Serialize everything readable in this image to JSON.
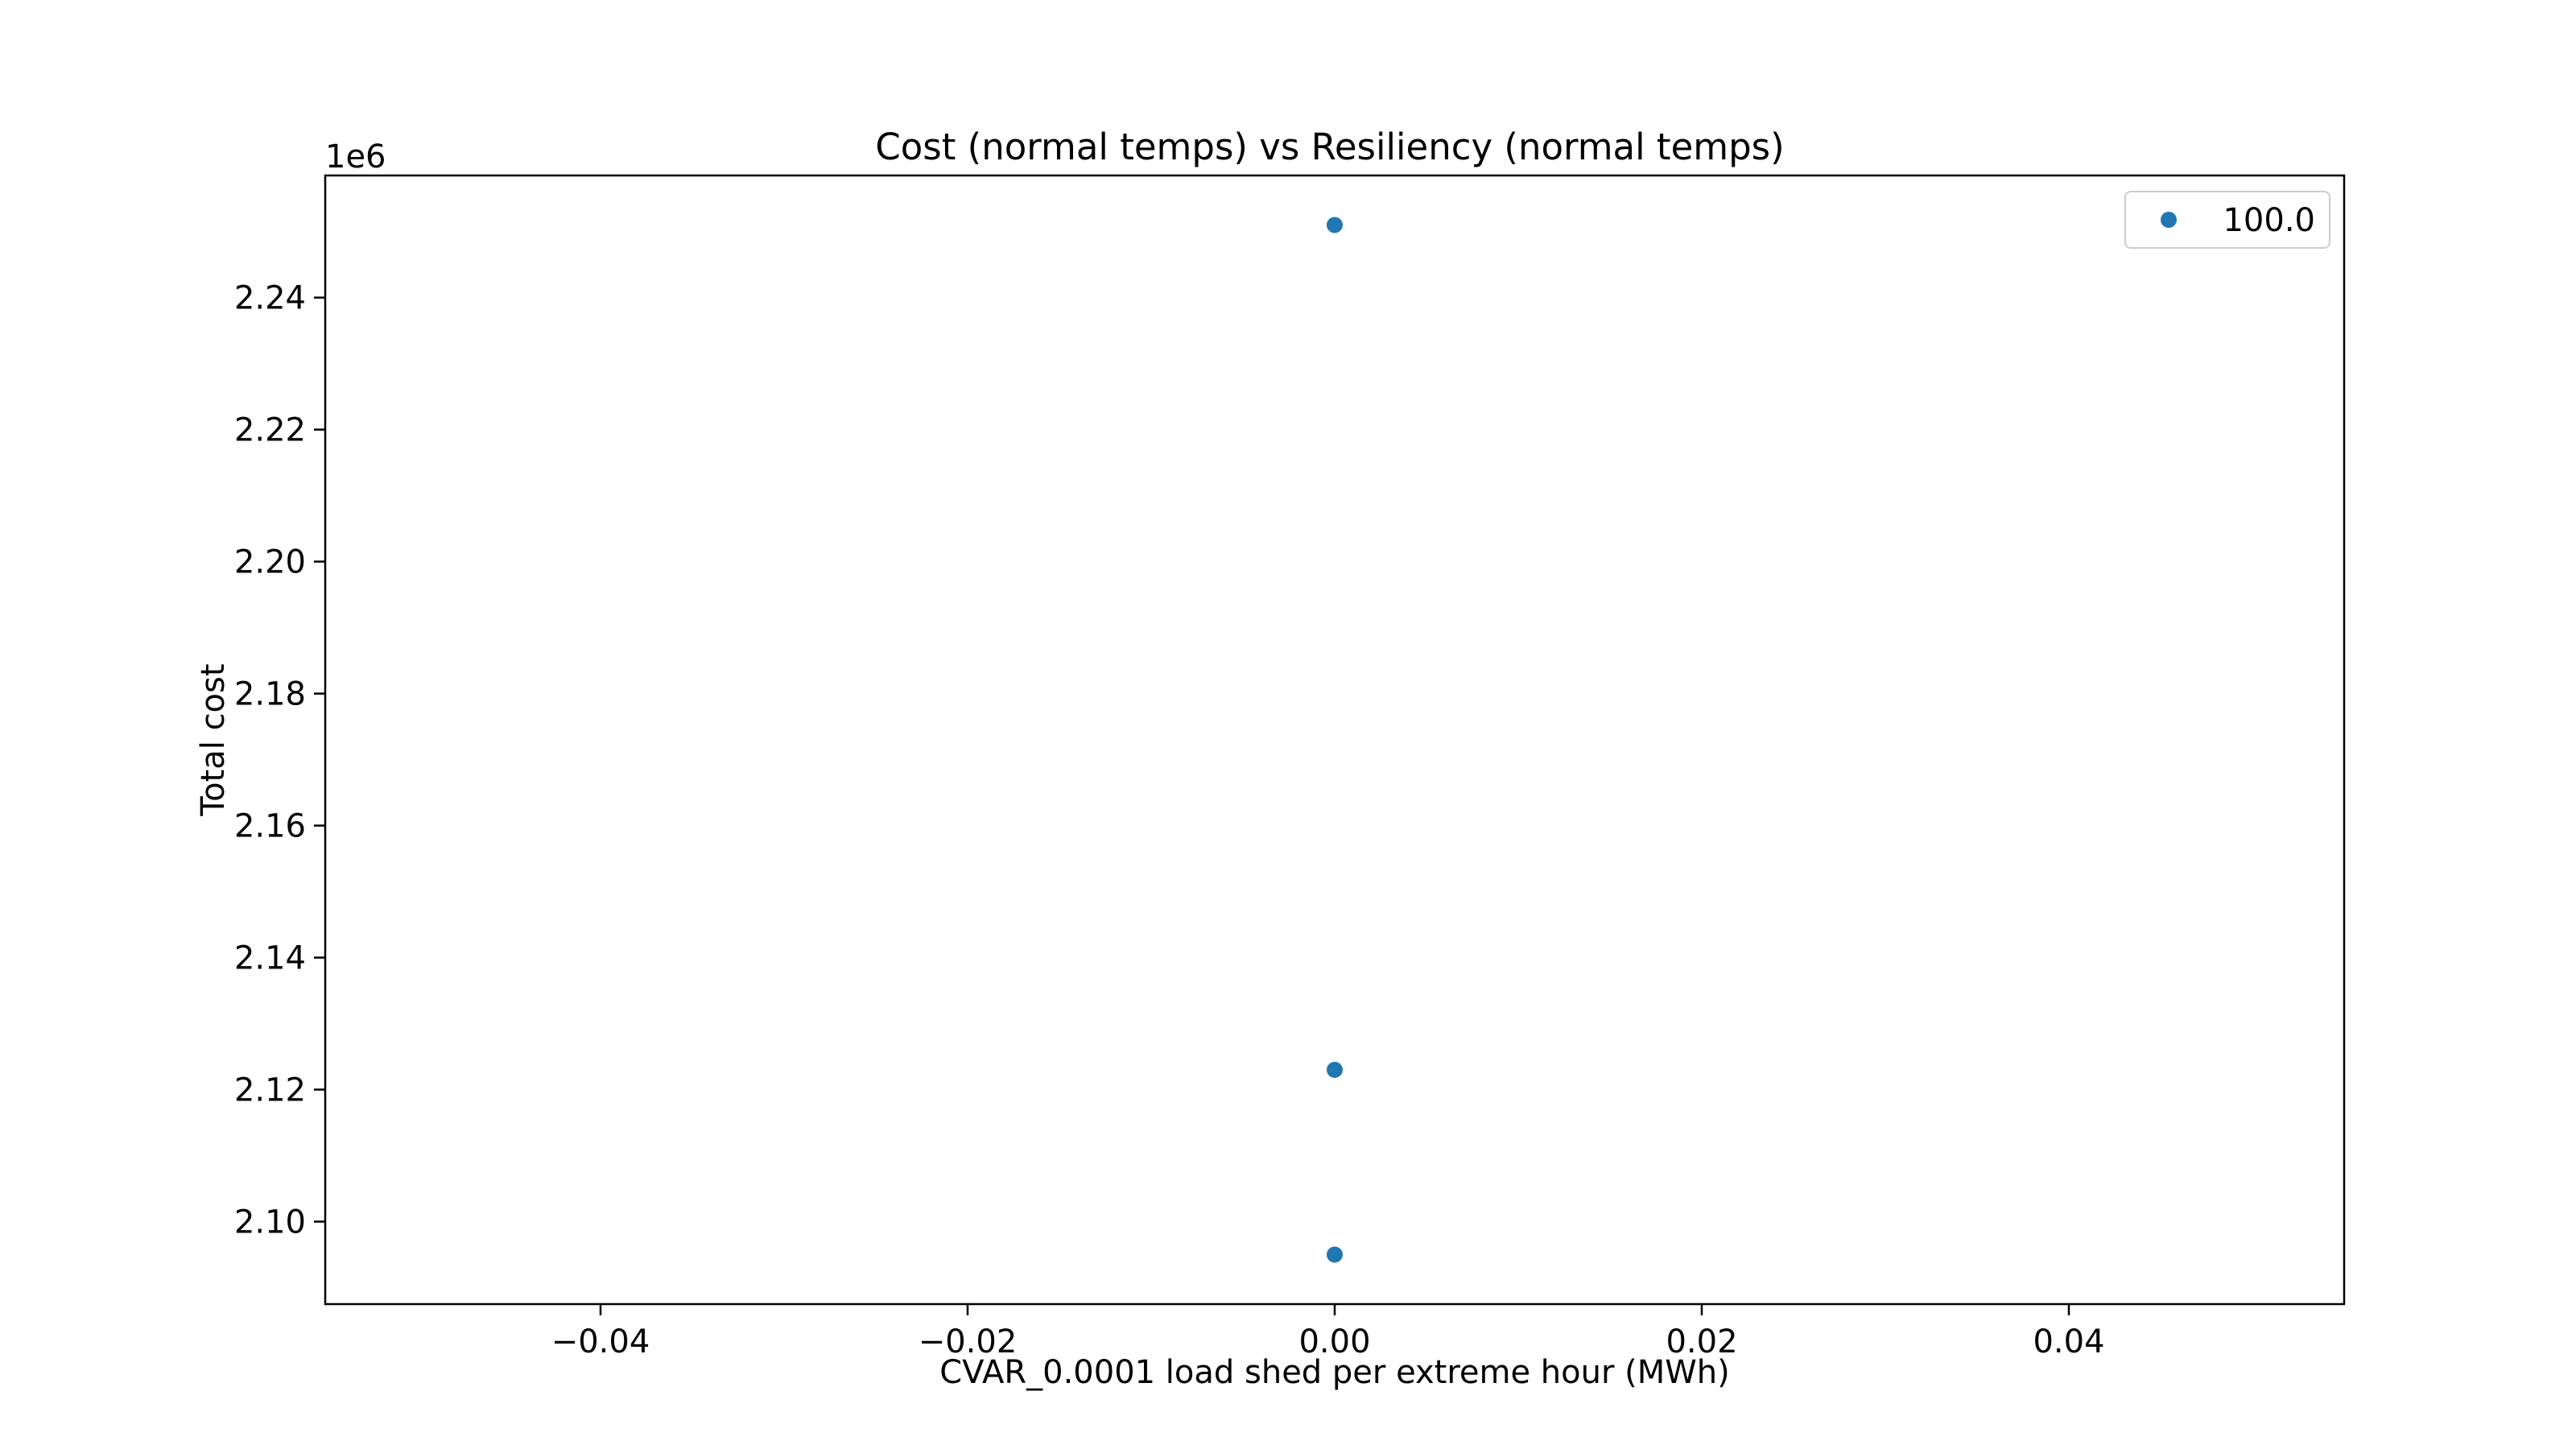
{
  "chart_data": {
    "type": "scatter",
    "title": "Cost (normal temps) vs Resiliency (normal temps)",
    "xlabel": "CVAR_0.0001 load shed per extreme hour (MWh)",
    "ylabel": "Total cost",
    "y_offset_label": "1e6",
    "xlim": [
      -0.055,
      0.055
    ],
    "ylim": [
      2.0875,
      2.2585
    ],
    "y_scale_factor": 1000000,
    "x_ticks": [
      -0.04,
      -0.02,
      0.0,
      0.02,
      0.04
    ],
    "x_tick_labels": [
      "−0.04",
      "−0.02",
      "0.00",
      "0.02",
      "0.04"
    ],
    "y_ticks": [
      2.1,
      2.12,
      2.14,
      2.16,
      2.18,
      2.2,
      2.22,
      2.24
    ],
    "y_tick_labels": [
      "2.10",
      "2.12",
      "2.14",
      "2.16",
      "2.18",
      "2.20",
      "2.22",
      "2.24"
    ],
    "grid": false,
    "legend_position": "upper-right",
    "series": [
      {
        "name": "100.0",
        "color": "#1f77b4",
        "points": [
          {
            "x": 0.0,
            "y": 2251000
          },
          {
            "x": 0.0,
            "y": 2123000
          },
          {
            "x": 0.0,
            "y": 2095000
          }
        ]
      }
    ]
  }
}
